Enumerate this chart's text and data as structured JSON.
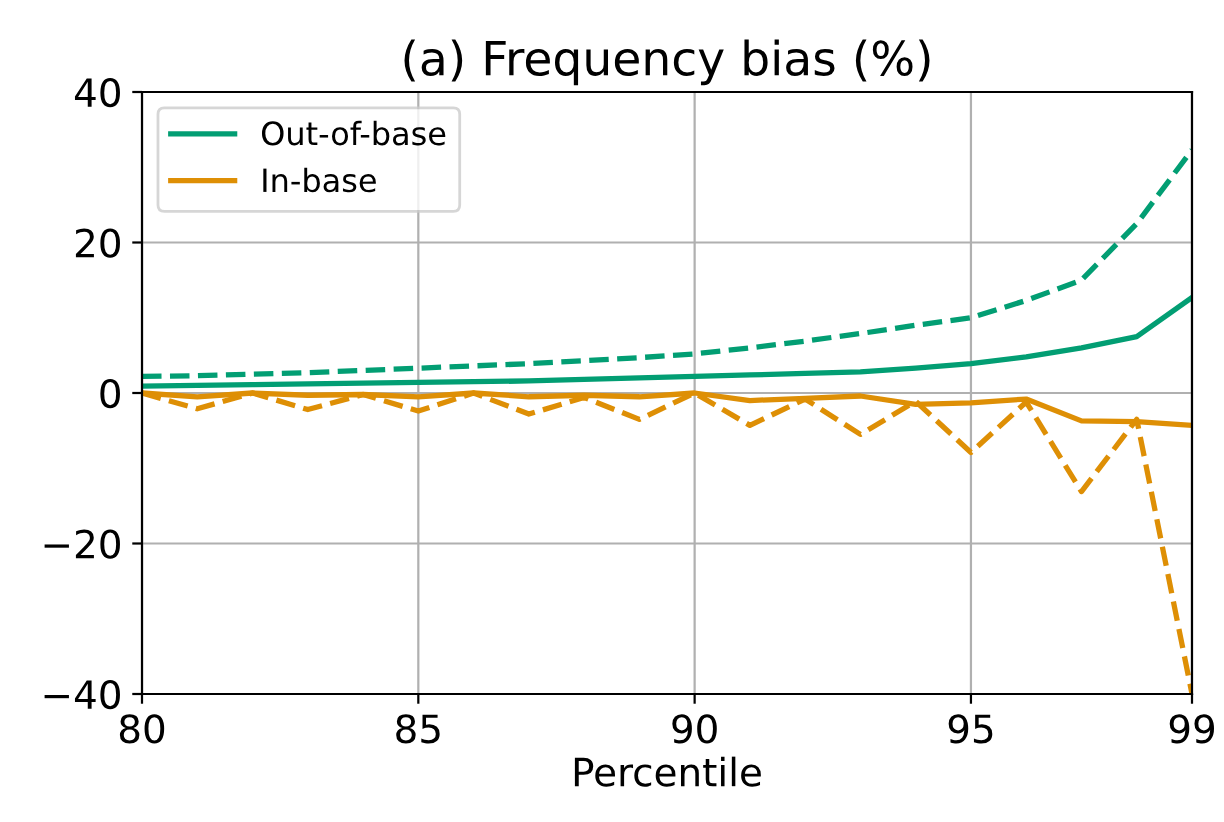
{
  "chart_data": {
    "type": "line",
    "title": "(a) Frequency bias (%)",
    "xlabel": "Percentile",
    "x": [
      80,
      81,
      82,
      83,
      84,
      85,
      86,
      87,
      88,
      89,
      90,
      91,
      92,
      93,
      94,
      95,
      96,
      97,
      98,
      99
    ],
    "series": [
      {
        "name": "Out-of-base",
        "color": "#029e73",
        "line_style": "solid",
        "values": [
          0.9,
          1.0,
          1.1,
          1.2,
          1.3,
          1.4,
          1.5,
          1.6,
          1.8,
          2.0,
          2.2,
          2.4,
          2.6,
          2.8,
          3.3,
          3.9,
          4.8,
          6.0,
          7.5,
          12.7
        ]
      },
      {
        "name": "In-base",
        "color": "#de8f05",
        "line_style": "solid",
        "values": [
          0,
          -0.5,
          0,
          -0.3,
          -0.2,
          -0.5,
          0,
          -0.5,
          -0.3,
          -0.5,
          0,
          -1.0,
          -0.7,
          -0.4,
          -1.5,
          -1.3,
          -0.8,
          -3.7,
          -3.8,
          -4.3
        ]
      },
      {
        "color": "#029e73",
        "line_style": "dashed",
        "values": [
          2.2,
          2.3,
          2.5,
          2.7,
          3.0,
          3.3,
          3.6,
          3.9,
          4.3,
          4.7,
          5.2,
          6.0,
          6.9,
          7.9,
          9.0,
          10.0,
          12.3,
          15.0,
          22.5,
          32.3
        ]
      },
      {
        "color": "#de8f05",
        "line_style": "dashed",
        "values": [
          0,
          -2.1,
          0,
          -2.2,
          -0.2,
          -2.4,
          0,
          -2.8,
          -0.6,
          -3.5,
          0,
          -4.3,
          -0.8,
          -5.5,
          -1.1,
          -7.9,
          -1.2,
          -13.1,
          -3.5,
          -40
        ]
      }
    ],
    "xlim": [
      80,
      99
    ],
    "xticks": [
      80,
      85,
      90,
      95,
      99
    ],
    "ylim": [
      -40,
      40
    ],
    "yticks": [
      {
        "value": -40,
        "label": "−40"
      },
      {
        "value": -20,
        "label": "−20"
      },
      0,
      20,
      40
    ],
    "grid": true,
    "legend": "top left",
    "marker": "none"
  }
}
